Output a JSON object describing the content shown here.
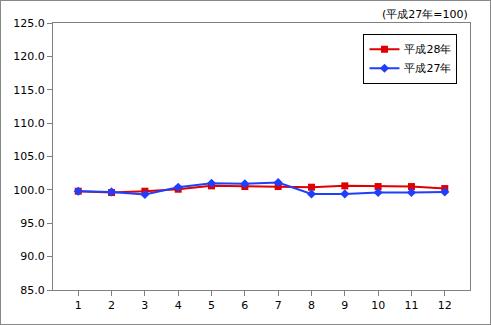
{
  "chart_data": {
    "type": "line",
    "annotation": "(平成27年=100)",
    "categories": [
      "1",
      "2",
      "3",
      "4",
      "5",
      "6",
      "7",
      "8",
      "9",
      "10",
      "11",
      "12"
    ],
    "series": [
      {
        "name": "平成28年",
        "color": "#e00000",
        "marker": "square",
        "values": [
          99.8,
          99.6,
          99.8,
          100.1,
          100.6,
          100.5,
          100.5,
          100.4,
          100.6,
          100.5,
          100.5,
          100.2
        ]
      },
      {
        "name": "平成27年",
        "color": "#1f3fff",
        "marker": "diamond",
        "values": [
          99.8,
          99.7,
          99.3,
          100.4,
          101.0,
          100.9,
          101.1,
          99.4,
          99.4,
          99.6,
          99.6,
          99.7
        ]
      }
    ],
    "ylim": [
      85,
      125
    ],
    "yticks": [
      {
        "value": 85,
        "label": "85.0"
      },
      {
        "value": 90,
        "label": "90.0"
      },
      {
        "value": 95,
        "label": "95.0"
      },
      {
        "value": 100,
        "label": "100.0"
      },
      {
        "value": 105,
        "label": "105.0"
      },
      {
        "value": 110,
        "label": "110.0"
      },
      {
        "value": 115,
        "label": "115.0"
      },
      {
        "value": 120,
        "label": "120.0"
      },
      {
        "value": 125,
        "label": "125.0"
      }
    ],
    "grid": false,
    "legend": "upper right"
  }
}
